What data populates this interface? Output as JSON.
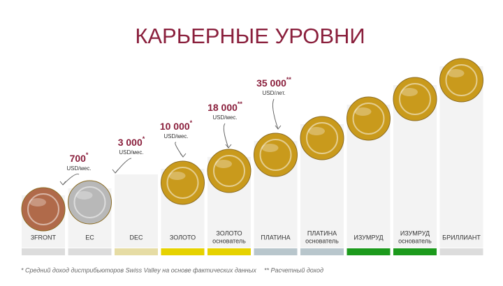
{
  "title": "КАРЬЕРНЫЕ УРОВНИ",
  "levels": [
    {
      "name": "3FRONT",
      "subtitle": null,
      "bar_color": "#dcdcdc",
      "medal_color": "#b06a4a"
    },
    {
      "name": "EC",
      "subtitle": null,
      "bar_color": "#dcdcdc",
      "medal_color": "#b8b8b8"
    },
    {
      "name": "DEC",
      "subtitle": null,
      "bar_color": "#e6dca4",
      "medal_color": null
    },
    {
      "name": "ЗОЛОТО",
      "subtitle": null,
      "bar_color": "#e6d200",
      "medal_color": "#c99a1c"
    },
    {
      "name": "ЗОЛОТО",
      "subtitle": "основатель",
      "bar_color": "#e6d200",
      "medal_color": "#c99a1c"
    },
    {
      "name": "ПЛАТИНА",
      "subtitle": null,
      "bar_color": "#b8c6cc",
      "medal_color": "#c99a1c"
    },
    {
      "name": "ПЛАТИНА",
      "subtitle": "основатель",
      "bar_color": "#b8c6cc",
      "medal_color": "#c99a1c"
    },
    {
      "name": "ИЗУМРУД",
      "subtitle": null,
      "bar_color": "#1c9a1c",
      "medal_color": "#c99a1c"
    },
    {
      "name": "ИЗУМРУД",
      "subtitle": "основатель",
      "bar_color": "#1c9a1c",
      "medal_color": "#c99a1c"
    },
    {
      "name": "БРИЛЛИАНТ",
      "subtitle": null,
      "bar_color": "#dcdcdc",
      "medal_color": "#c99a1c"
    }
  ],
  "incomes": [
    {
      "amount": "700",
      "mark": "*",
      "unit": "USD/мес."
    },
    {
      "amount": "3 000",
      "mark": "*",
      "unit": "USD/мес."
    },
    {
      "amount": "10 000",
      "mark": "*",
      "unit": "USD/мес."
    },
    {
      "amount": "18 000",
      "mark": "**",
      "unit": "USD/мес."
    },
    {
      "amount": "35 000",
      "mark": "**",
      "unit": "USD/лет."
    }
  ],
  "footnotes": [
    "* Средний доход дистрибьюторов Swiss Valley на основе фактических данных",
    "** Расчетный доход"
  ]
}
